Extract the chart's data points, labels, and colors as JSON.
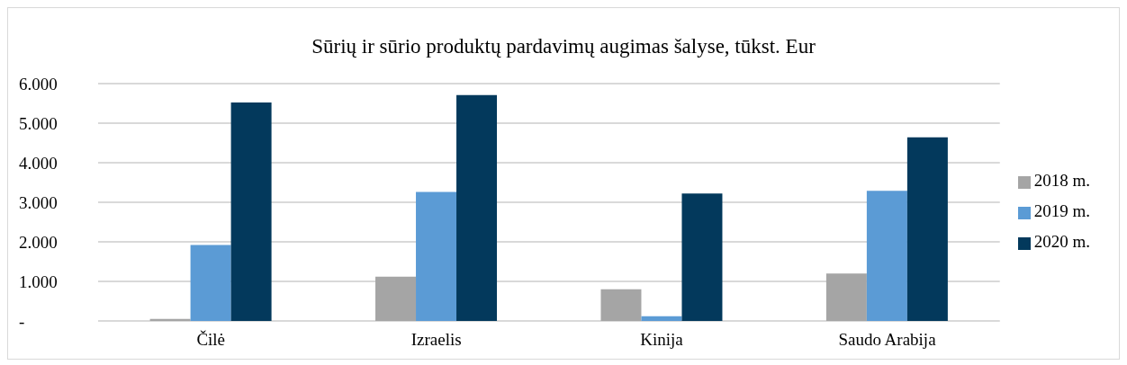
{
  "chart_data": {
    "type": "bar",
    "title": "Sūrių ir sūrio produktų pardavimų augimas šalyse, tūkst. Eur",
    "categories": [
      "Čilė",
      "Izraelis",
      "Kinija",
      "Saudo Arabija"
    ],
    "series": [
      {
        "name": "2018 m.",
        "color": "#a5a5a5",
        "values": [
          50,
          1120,
          800,
          1200
        ]
      },
      {
        "name": "2019 m.",
        "color": "#5b9bd5",
        "values": [
          1920,
          3260,
          120,
          3290
        ]
      },
      {
        "name": "2020 m.",
        "color": "#03395c",
        "values": [
          5520,
          5710,
          3220,
          4640
        ]
      }
    ],
    "ylim": [
      0,
      6000
    ],
    "yticks": [
      {
        "value": 0,
        "label": "-"
      },
      {
        "value": 1000,
        "label": "1.000"
      },
      {
        "value": 2000,
        "label": "2.000"
      },
      {
        "value": 3000,
        "label": "3.000"
      },
      {
        "value": 4000,
        "label": "4.000"
      },
      {
        "value": 5000,
        "label": "5.000"
      },
      {
        "value": 6000,
        "label": "6.000"
      }
    ],
    "grid": "y",
    "legend": "right"
  }
}
